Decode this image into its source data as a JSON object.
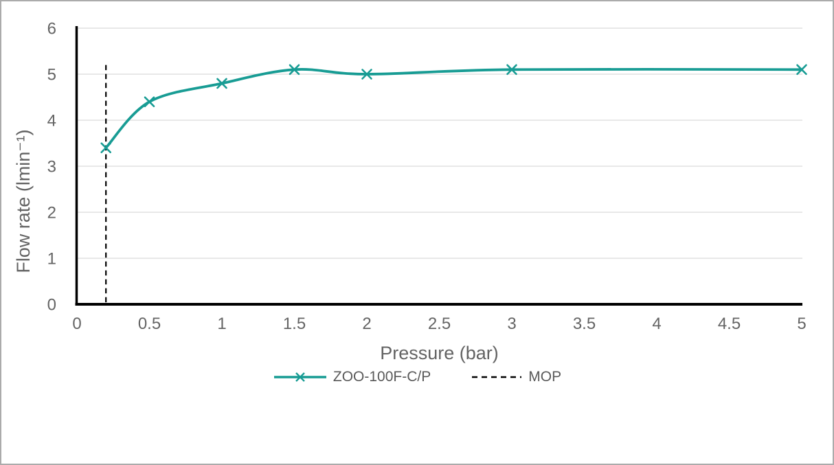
{
  "chart_data": {
    "type": "line",
    "title": "",
    "xlabel": "Pressure (bar)",
    "ylabel": "Flow rate (lmin⁻¹)",
    "xlim": [
      0,
      5
    ],
    "ylim": [
      0,
      6
    ],
    "x_ticks": [
      "0",
      "0.5",
      "1",
      "1.5",
      "2",
      "2.5",
      "3",
      "3.5",
      "4",
      "4.5",
      "5"
    ],
    "y_ticks": [
      "0",
      "1",
      "2",
      "3",
      "4",
      "5",
      "6"
    ],
    "grid": "horizontal-gridlines",
    "legend_position": "bottom-center",
    "series": [
      {
        "name": "ZOO-100F-C/P",
        "kind": "smooth-line",
        "marker": "x",
        "color": "#189c94",
        "points": [
          [
            0.2,
            3.4
          ],
          [
            0.5,
            4.4
          ],
          [
            1,
            4.8
          ],
          [
            1.5,
            5.1
          ],
          [
            2,
            5.0
          ],
          [
            3,
            5.1
          ],
          [
            5,
            5.1
          ]
        ]
      },
      {
        "name": "MOP",
        "kind": "vertical-dashed-line",
        "color": "#000000",
        "x": 0.2,
        "y_span": [
          0,
          5.2
        ]
      }
    ]
  },
  "style_colors": {
    "axis_line": "#000000",
    "gridline": "#d9d9d9",
    "tick_text": "#646464",
    "legend_text": "#595959",
    "frame_border": "#ababab",
    "background": "#ffffff"
  }
}
